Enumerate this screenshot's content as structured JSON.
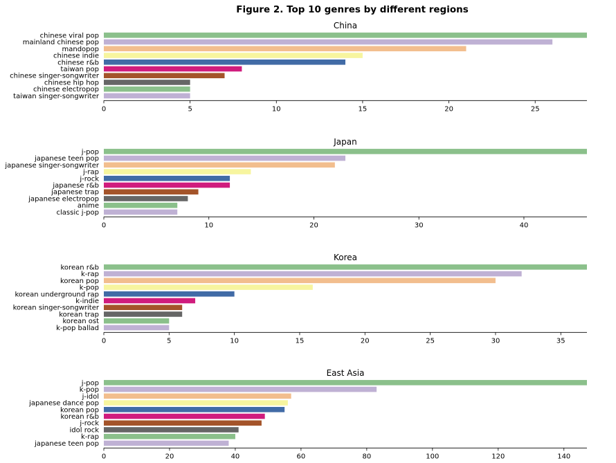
{
  "figure": {
    "title": "Figure 2. Top 10 genres by different regions"
  },
  "palette": [
    "#8bc08b",
    "#bfb1d4",
    "#f2be8e",
    "#f7f59f",
    "#416ba6",
    "#d01c7d",
    "#a4542a",
    "#666666",
    "#8bc08b",
    "#bfb1d4"
  ],
  "chart_data": [
    {
      "type": "bar",
      "orientation": "horizontal",
      "title": "China",
      "categories": [
        "chinese viral pop",
        "mainland chinese pop",
        "mandopop",
        "chinese indie",
        "chinese r&b",
        "taiwan pop",
        "chinese singer-songwriter",
        "chinese hip hop",
        "chinese electropop",
        "taiwan singer-songwriter"
      ],
      "values": [
        28,
        26,
        21,
        15,
        14,
        8,
        7,
        5,
        5,
        5
      ],
      "xlim": [
        0,
        28
      ],
      "xticks": [
        0,
        5,
        10,
        15,
        20,
        25
      ],
      "xlabel": "",
      "ylabel": "",
      "grid": false,
      "legend": "none"
    },
    {
      "type": "bar",
      "orientation": "horizontal",
      "title": "Japan",
      "categories": [
        "j-pop",
        "japanese teen pop",
        "japanese singer-songwriter",
        "j-rap",
        "j-rock",
        "japanese r&b",
        "japanese trap",
        "japanese electropop",
        "anime",
        "classic j-pop"
      ],
      "values": [
        46,
        23,
        22,
        14,
        12,
        12,
        9,
        8,
        7,
        7
      ],
      "xlim": [
        0,
        46
      ],
      "xticks": [
        0,
        10,
        20,
        30,
        40
      ],
      "xlabel": "",
      "ylabel": "",
      "grid": false,
      "legend": "none"
    },
    {
      "type": "bar",
      "orientation": "horizontal",
      "title": "Korea",
      "categories": [
        "korean r&b",
        "k-rap",
        "korean pop",
        "k-pop",
        "korean underground rap",
        "k-indie",
        "korean singer-songwriter",
        "korean trap",
        "korean ost",
        "k-pop ballad"
      ],
      "values": [
        37,
        32,
        30,
        16,
        10,
        7,
        6,
        6,
        5,
        5
      ],
      "xlim": [
        0,
        37
      ],
      "xticks": [
        0,
        5,
        10,
        15,
        20,
        25,
        30,
        35
      ],
      "xlabel": "",
      "ylabel": "",
      "grid": false,
      "legend": "none"
    },
    {
      "type": "bar",
      "orientation": "horizontal",
      "title": "East Asia",
      "categories": [
        "j-pop",
        "k-pop",
        "j-idol",
        "japanese dance pop",
        "korean pop",
        "korean r&b",
        "j-rock",
        "idol rock",
        "k-rap",
        "japanese teen pop"
      ],
      "values": [
        147,
        83,
        57,
        56,
        55,
        49,
        48,
        41,
        40,
        38
      ],
      "xlim": [
        0,
        147
      ],
      "xticks": [
        0,
        20,
        40,
        60,
        80,
        100,
        120,
        140
      ],
      "xlabel": "",
      "ylabel": "",
      "grid": false,
      "legend": "none"
    }
  ]
}
